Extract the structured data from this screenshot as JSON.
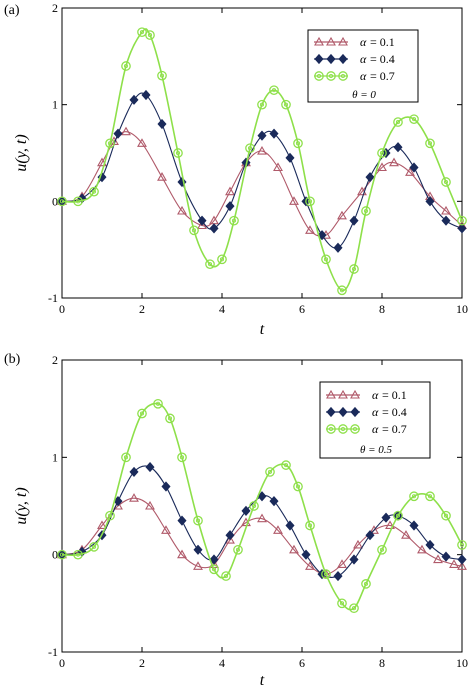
{
  "panels": [
    {
      "label": "(a)",
      "ylabel": "u(y, t)",
      "xlabel": "t",
      "param_note": "θ = 0",
      "xlim": [
        0,
        10
      ],
      "ylim": [
        -1,
        2
      ],
      "xticks": [
        "0",
        "2",
        "4",
        "6",
        "8",
        "10"
      ],
      "yticks": [
        "-1",
        "0",
        "1",
        "2"
      ]
    },
    {
      "label": "(b)",
      "ylabel": "u(y, t)",
      "xlabel": "t",
      "param_note": "θ = 0.5",
      "xlim": [
        0,
        10
      ],
      "ylim": [
        -1,
        2
      ],
      "xticks": [
        "0",
        "2",
        "4",
        "6",
        "8",
        "10"
      ],
      "yticks": [
        "-1",
        "0",
        "1",
        "2"
      ]
    }
  ],
  "legend": [
    {
      "symbol": "α",
      "value": "= 0.1",
      "marker": "triangle",
      "color": "#b05a6a"
    },
    {
      "symbol": "α",
      "value": "= 0.4",
      "marker": "diamond",
      "color": "#1a2a5a"
    },
    {
      "symbol": "α",
      "value": "= 0.7",
      "marker": "circle",
      "color": "#8ee04a"
    }
  ],
  "chart_data": [
    {
      "type": "line",
      "xlabel": "t",
      "ylabel": "u(y, t)",
      "xlim": [
        0,
        10
      ],
      "ylim": [
        -1,
        2
      ],
      "grid": false,
      "legend_position": "top-right",
      "series": [
        {
          "name": "α = 0.1",
          "color": "#b05a6a",
          "marker": "triangle",
          "x": [
            0,
            0.5,
            1.0,
            1.3,
            1.6,
            2.0,
            2.5,
            3.0,
            3.5,
            3.8,
            4.2,
            4.6,
            5.0,
            5.4,
            5.8,
            6.2,
            6.6,
            7.0,
            7.5,
            8.0,
            8.3,
            8.7,
            9.2,
            9.6,
            10.0
          ],
          "y": [
            0,
            0.05,
            0.4,
            0.62,
            0.72,
            0.6,
            0.25,
            -0.1,
            -0.25,
            -0.2,
            0.1,
            0.4,
            0.52,
            0.35,
            0.0,
            -0.3,
            -0.35,
            -0.15,
            0.1,
            0.35,
            0.4,
            0.3,
            0.05,
            -0.1,
            -0.25
          ]
        },
        {
          "name": "α = 0.4",
          "color": "#1a2a5a",
          "marker": "diamond",
          "x": [
            0,
            0.5,
            1.0,
            1.4,
            1.8,
            2.1,
            2.5,
            3.0,
            3.5,
            3.8,
            4.2,
            4.6,
            5.0,
            5.3,
            5.7,
            6.1,
            6.5,
            6.9,
            7.3,
            7.7,
            8.1,
            8.4,
            8.8,
            9.2,
            9.6,
            10.0
          ],
          "y": [
            0,
            0.03,
            0.25,
            0.7,
            1.05,
            1.1,
            0.8,
            0.2,
            -0.2,
            -0.28,
            -0.05,
            0.4,
            0.68,
            0.7,
            0.45,
            0.0,
            -0.35,
            -0.48,
            -0.2,
            0.25,
            0.5,
            0.56,
            0.35,
            0.0,
            -0.2,
            -0.28
          ]
        },
        {
          "name": "α = 0.7",
          "color": "#8ee04a",
          "marker": "circle",
          "x": [
            0,
            0.4,
            0.8,
            1.2,
            1.6,
            2.0,
            2.2,
            2.5,
            2.9,
            3.3,
            3.7,
            4.0,
            4.3,
            4.7,
            5.0,
            5.3,
            5.6,
            5.9,
            6.2,
            6.6,
            7.0,
            7.3,
            7.6,
            8.0,
            8.4,
            8.8,
            9.2,
            9.6,
            10.0
          ],
          "y": [
            0,
            0.0,
            0.1,
            0.6,
            1.4,
            1.75,
            1.72,
            1.3,
            0.5,
            -0.3,
            -0.65,
            -0.6,
            -0.2,
            0.55,
            1.0,
            1.15,
            1.0,
            0.6,
            0.0,
            -0.6,
            -0.92,
            -0.7,
            -0.1,
            0.5,
            0.82,
            0.85,
            0.6,
            0.2,
            -0.2
          ]
        }
      ]
    },
    {
      "type": "line",
      "xlabel": "t",
      "ylabel": "u(y, t)",
      "xlim": [
        0,
        10
      ],
      "ylim": [
        -1,
        2
      ],
      "grid": false,
      "legend_position": "top-right",
      "series": [
        {
          "name": "α = 0.1",
          "color": "#b05a6a",
          "marker": "triangle",
          "x": [
            0,
            0.5,
            1.0,
            1.4,
            1.8,
            2.2,
            2.6,
            3.0,
            3.4,
            3.8,
            4.2,
            4.6,
            5.0,
            5.4,
            5.8,
            6.2,
            6.6,
            7.0,
            7.4,
            7.8,
            8.2,
            8.6,
            9.0,
            9.4,
            9.8,
            10.0
          ],
          "y": [
            0,
            0.05,
            0.3,
            0.5,
            0.58,
            0.5,
            0.25,
            0.0,
            -0.12,
            -0.1,
            0.15,
            0.33,
            0.37,
            0.25,
            0.05,
            -0.12,
            -0.2,
            -0.1,
            0.1,
            0.25,
            0.3,
            0.2,
            0.05,
            -0.05,
            -0.1,
            -0.12
          ]
        },
        {
          "name": "α = 0.4",
          "color": "#1a2a5a",
          "marker": "diamond",
          "x": [
            0,
            0.5,
            1.0,
            1.4,
            1.8,
            2.2,
            2.6,
            3.0,
            3.4,
            3.8,
            4.2,
            4.6,
            5.0,
            5.3,
            5.7,
            6.1,
            6.5,
            6.9,
            7.3,
            7.7,
            8.1,
            8.4,
            8.8,
            9.2,
            9.6,
            10.0
          ],
          "y": [
            0,
            0.03,
            0.2,
            0.55,
            0.85,
            0.9,
            0.7,
            0.35,
            0.05,
            -0.05,
            0.2,
            0.45,
            0.6,
            0.55,
            0.3,
            0.0,
            -0.2,
            -0.22,
            -0.05,
            0.2,
            0.38,
            0.4,
            0.3,
            0.1,
            -0.02,
            -0.05
          ]
        },
        {
          "name": "α = 0.7",
          "color": "#8ee04a",
          "marker": "circle",
          "x": [
            0,
            0.4,
            0.8,
            1.2,
            1.6,
            2.0,
            2.4,
            2.7,
            3.0,
            3.4,
            3.8,
            4.1,
            4.4,
            4.8,
            5.2,
            5.6,
            5.9,
            6.2,
            6.6,
            7.0,
            7.3,
            7.6,
            8.0,
            8.4,
            8.8,
            9.2,
            9.6,
            10.0
          ],
          "y": [
            0,
            0.0,
            0.08,
            0.4,
            1.0,
            1.45,
            1.55,
            1.4,
            1.0,
            0.35,
            -0.15,
            -0.22,
            0.05,
            0.5,
            0.85,
            0.92,
            0.7,
            0.3,
            -0.2,
            -0.5,
            -0.55,
            -0.3,
            0.05,
            0.4,
            0.6,
            0.6,
            0.4,
            0.1
          ]
        }
      ]
    }
  ]
}
